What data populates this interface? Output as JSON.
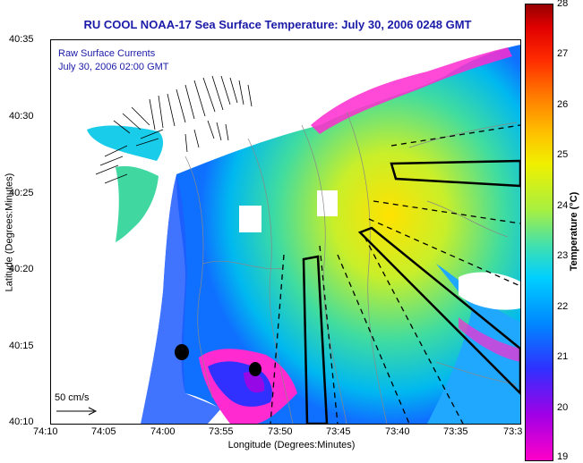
{
  "title": "RU COOL  NOAA-17  Sea Surface Temperature:  July 30, 2006 0248 GMT",
  "overlay": {
    "line1": "Raw Surface Currents",
    "line2": "July 30, 2006 02:00 GMT"
  },
  "scale_label": "50 cm/s",
  "axes": {
    "xlabel": "Longitude (Degrees:Minutes)",
    "ylabel": "Latitude (Degrees:Minutes)",
    "x_ticks": [
      "74:10",
      "74:05",
      "74:00",
      "73:55",
      "73:50",
      "73:45",
      "73:40",
      "73:35",
      "73:3"
    ],
    "y_ticks": [
      "40:35",
      "40:30",
      "40:25",
      "40:20",
      "40:15",
      "40:10"
    ]
  },
  "colorbar": {
    "title": "Temperature (°C)",
    "min": 19,
    "max": 28,
    "ticks": [
      "28",
      "27",
      "26",
      "25",
      "24",
      "23",
      "22",
      "21",
      "20",
      "19"
    ]
  },
  "colors": {
    "title": "#1a1aa8",
    "land": "#ffffff",
    "track": "#000000"
  }
}
